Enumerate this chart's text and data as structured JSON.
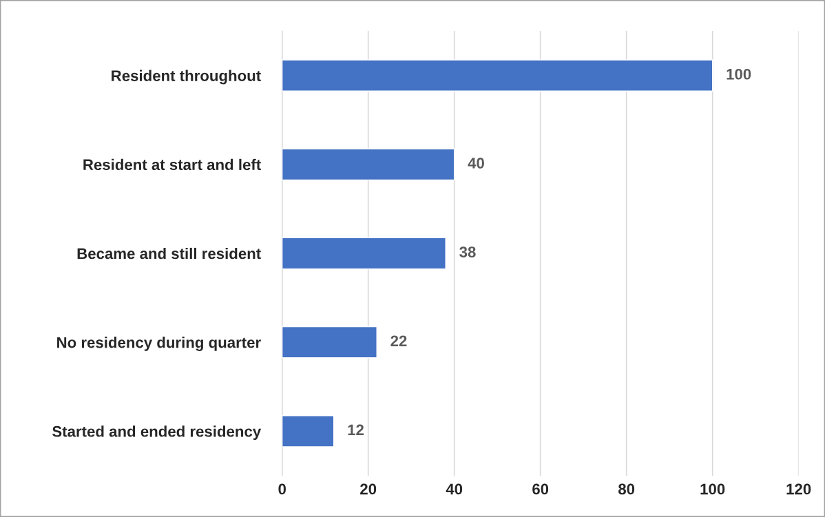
{
  "chart_data": {
    "type": "bar",
    "orientation": "horizontal",
    "categories": [
      "Resident throughout",
      "Resident at start and left",
      "Became and still resident",
      "No residency during quarter",
      "Started and ended residency"
    ],
    "values": [
      100,
      40,
      38,
      22,
      12
    ],
    "color": "#4472c4",
    "xlim": [
      0,
      120
    ],
    "xticks": [
      0,
      20,
      40,
      60,
      80,
      100,
      120
    ],
    "grid": "x",
    "data_labels": true
  }
}
